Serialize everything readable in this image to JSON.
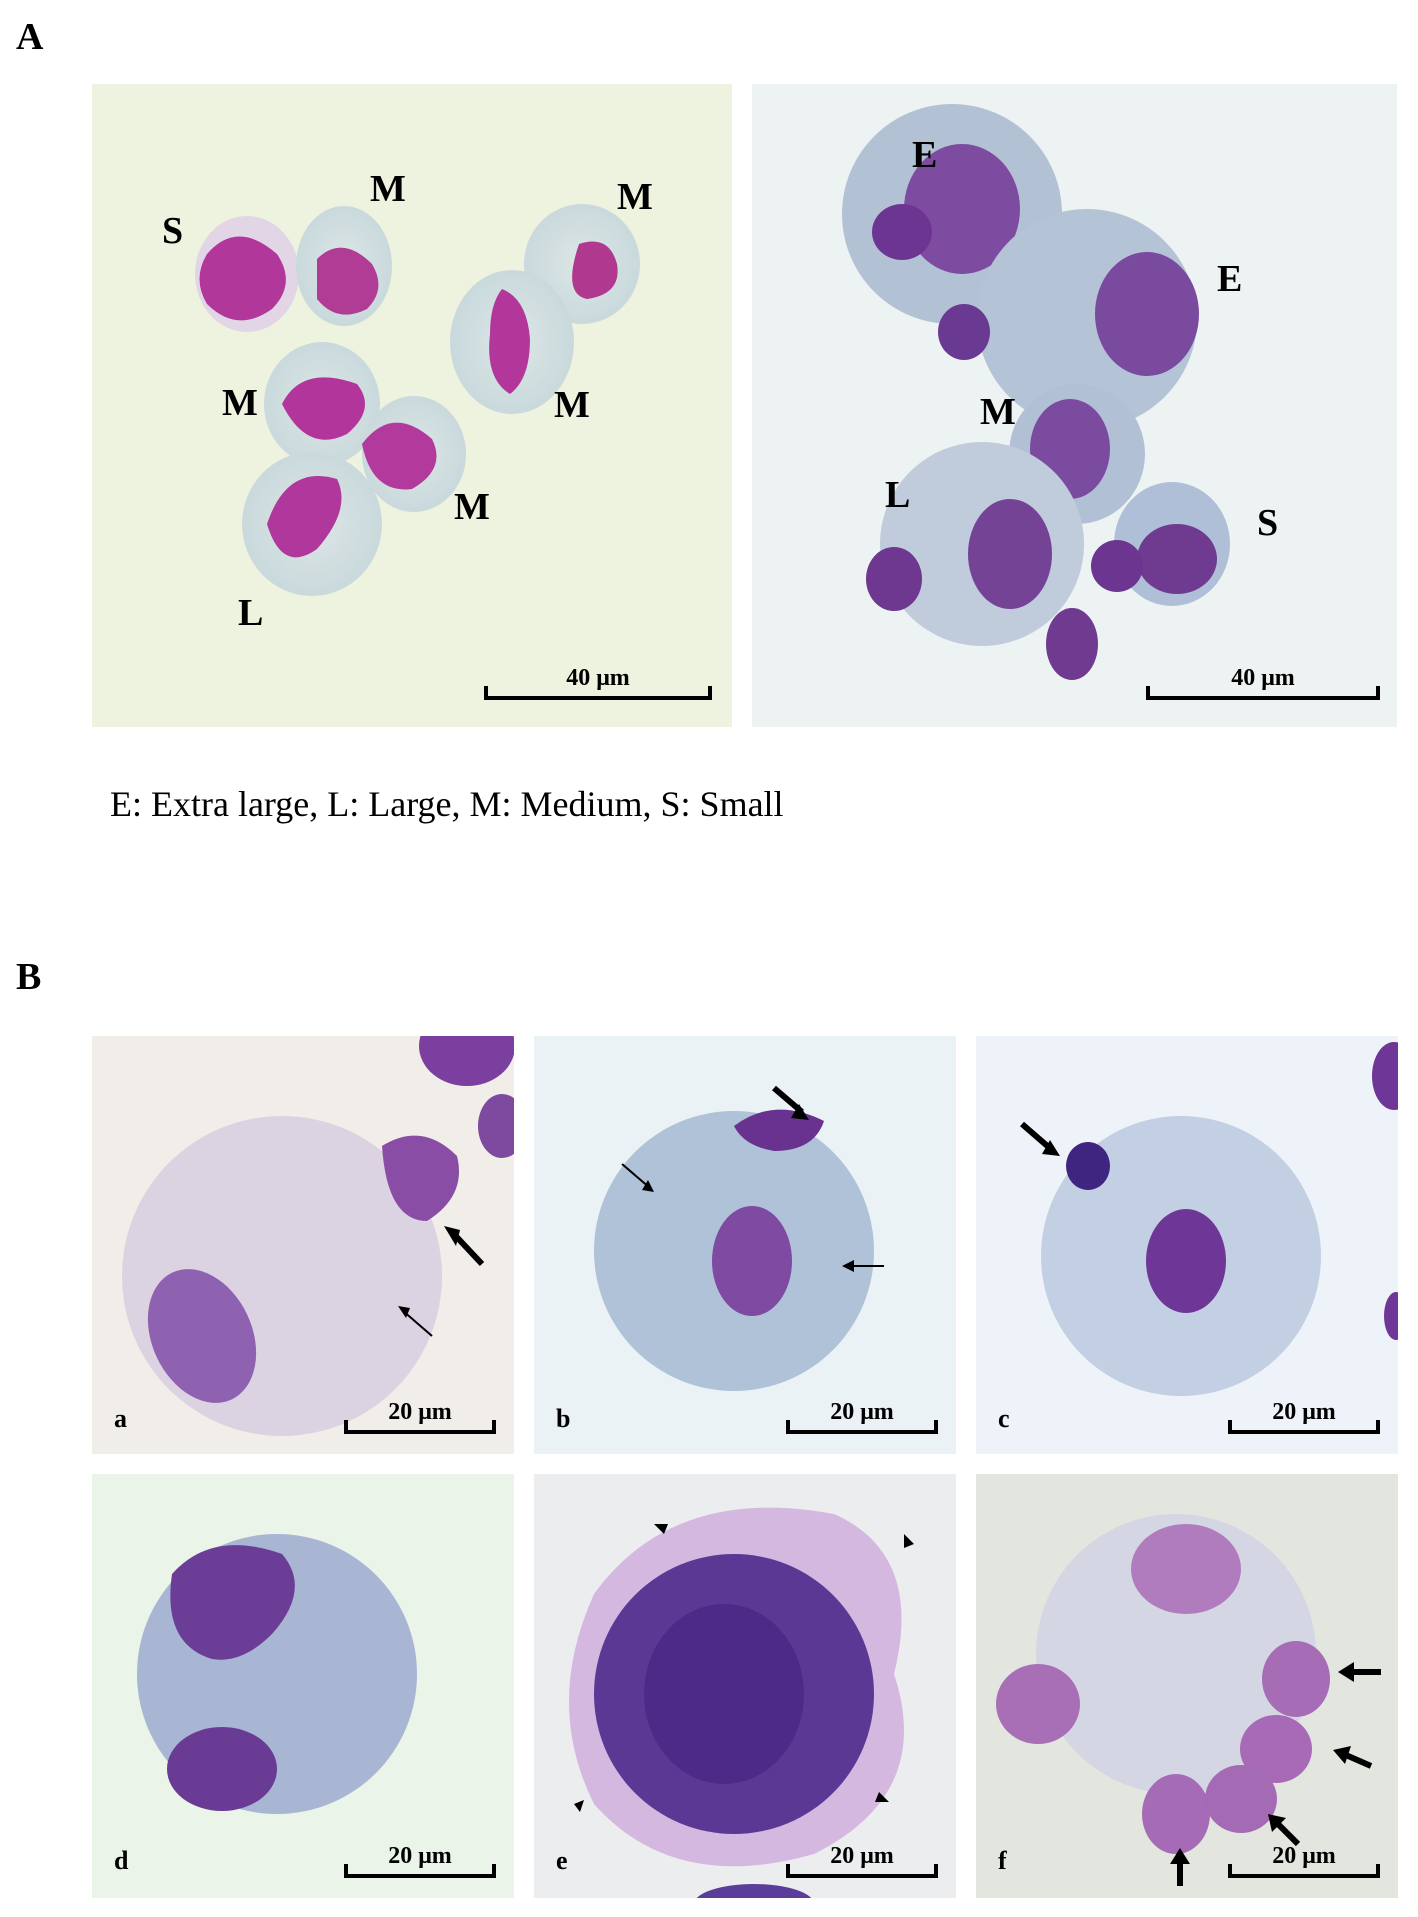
{
  "section_a": {
    "label": "A",
    "left_panel": {
      "cell_labels": [
        "S",
        "M",
        "M",
        "M",
        "M",
        "M",
        "L"
      ],
      "scale_bar": "40 μm"
    },
    "right_panel": {
      "cell_labels": [
        "E",
        "E",
        "M",
        "L",
        "S"
      ],
      "scale_bar": "40 μm"
    },
    "legend": "E: Extra large, L: Large, M: Medium, S: Small"
  },
  "section_b": {
    "label": "B",
    "panels": [
      {
        "label": "a",
        "scale_bar": "20 μm"
      },
      {
        "label": "b",
        "scale_bar": "20 μm"
      },
      {
        "label": "c",
        "scale_bar": "20 μm"
      },
      {
        "label": "d",
        "scale_bar": "20 μm"
      },
      {
        "label": "e",
        "scale_bar": "20 μm"
      },
      {
        "label": "f",
        "scale_bar": "20 μm"
      }
    ]
  },
  "colors": {
    "background_green": "#eef3df",
    "background_blue": "#eaf1f7",
    "background_gray": "#e6e8e2",
    "cytoplasm_blue": "#a7b6d3",
    "nucleus_purple": "#6a3d96",
    "nucleus_magenta": "#b63f9a"
  }
}
